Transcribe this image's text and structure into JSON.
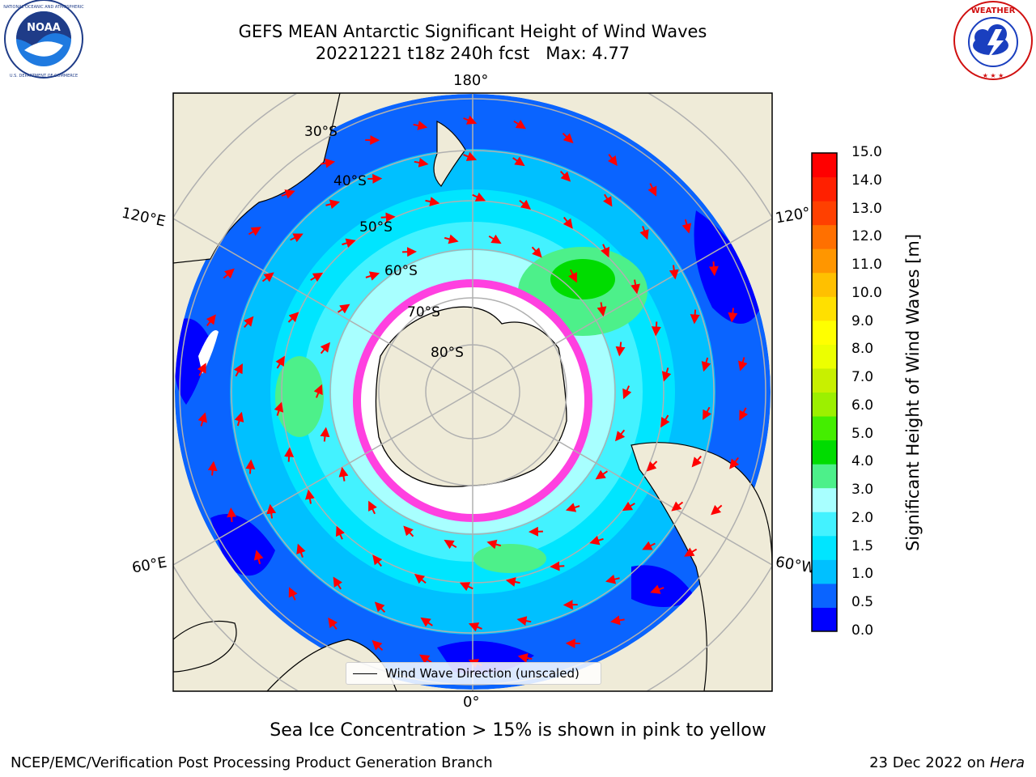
{
  "title": {
    "line1": "GEFS MEAN Antarctic Significant Height of Wind Waves",
    "line2": "20221221 t18z 240h fcst   Max: 4.77"
  },
  "longitude_labels": {
    "top": "180°",
    "bottom": "0°",
    "left_upper": "120°E",
    "left_lower": "60°E",
    "right_upper": "120°",
    "right_lower": "60°W"
  },
  "latitude_labels": [
    "30°S",
    "40°S",
    "50°S",
    "60°S",
    "70°S",
    "80°S"
  ],
  "colorbar": {
    "label": "Significant Height of Wind Waves [m]",
    "ticks": [
      "15.0",
      "14.0",
      "13.0",
      "12.0",
      "11.0",
      "10.0",
      "9.0",
      "8.0",
      "7.0",
      "6.0",
      "5.0",
      "4.0",
      "3.0",
      "2.0",
      "1.5",
      "1.0",
      "0.5",
      "0.0"
    ],
    "colors_bottom_to_top": [
      "#0000ff",
      "#0a64ff",
      "#00c0ff",
      "#00e5ff",
      "#43f2ff",
      "#a8ffff",
      "#4df08a",
      "#00dc00",
      "#44ee00",
      "#9cf000",
      "#c8f000",
      "#ecff00",
      "#ffff00",
      "#ffe000",
      "#ffc000",
      "#ff9600",
      "#ff7000",
      "#ff4000",
      "#ff2000",
      "#ff0000"
    ]
  },
  "legend": {
    "label": "Wind Wave Direction (unscaled)"
  },
  "note": "Sea Ice Concentration > 15% is shown in pink to yellow",
  "footer": {
    "left": "NCEP/EMC/Verification Post Processing Product Generation Branch",
    "date": "23 Dec 2022 on ",
    "machine": "Hera"
  },
  "logos": {
    "left": "NOAA",
    "right": "NATIONAL WEATHER SERVICE"
  },
  "colors": {
    "land": "#efebd8",
    "ocean_low": "#0a64ff",
    "ocean_mid": "#00e5ff",
    "ice": "#ff40e0",
    "arrow": "#ff0000"
  }
}
